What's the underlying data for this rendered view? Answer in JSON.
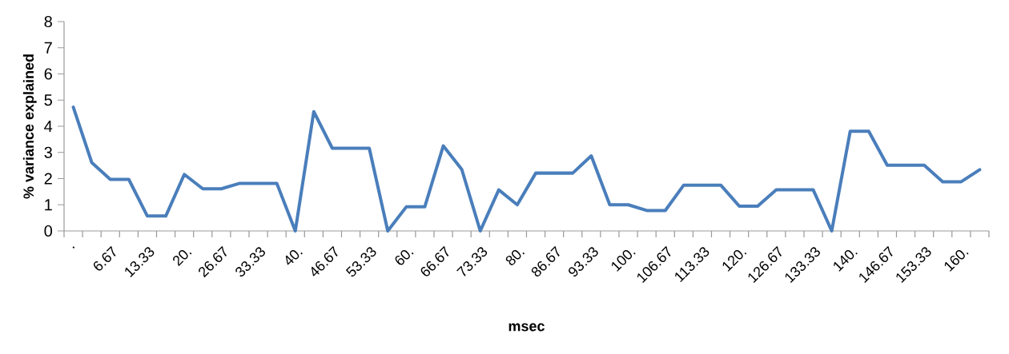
{
  "chart_data": {
    "type": "line",
    "xlabel": "msec",
    "ylabel": "% variance explained",
    "color": "#4a7ebb",
    "categories": [
      ".",
      null,
      "6.67",
      null,
      "13.33",
      null,
      "20.",
      null,
      "26.67",
      null,
      "33.33",
      null,
      "40.",
      null,
      "46.67",
      null,
      "53.33",
      null,
      "60.",
      null,
      "66.67",
      null,
      "73.33",
      null,
      "80.",
      null,
      "86.67",
      null,
      "93.33",
      null,
      "100.",
      null,
      "106.67",
      null,
      "113.33",
      null,
      "120.",
      null,
      "126.67",
      null,
      "133.33",
      null,
      "140.",
      null,
      "146.67",
      null,
      "153.33",
      null,
      "160.",
      null
    ],
    "values": [
      4.73,
      2.61,
      1.97,
      1.97,
      0.57,
      0.57,
      2.16,
      1.61,
      1.61,
      1.82,
      1.82,
      1.82,
      0,
      4.56,
      3.16,
      3.16,
      3.16,
      0,
      0.92,
      0.92,
      3.25,
      2.35,
      0,
      1.57,
      1.0,
      2.21,
      2.21,
      2.21,
      2.87,
      1.0,
      1.0,
      0.78,
      0.78,
      1.75,
      1.75,
      1.75,
      0.95,
      0.95,
      1.57,
      1.57,
      1.57,
      0,
      3.81,
      3.81,
      2.51,
      2.51,
      2.51,
      1.88,
      1.88,
      2.34
    ],
    "ylim": [
      0,
      8
    ],
    "yticks": [
      0,
      1,
      2,
      3,
      4,
      5,
      6,
      7,
      8
    ]
  }
}
